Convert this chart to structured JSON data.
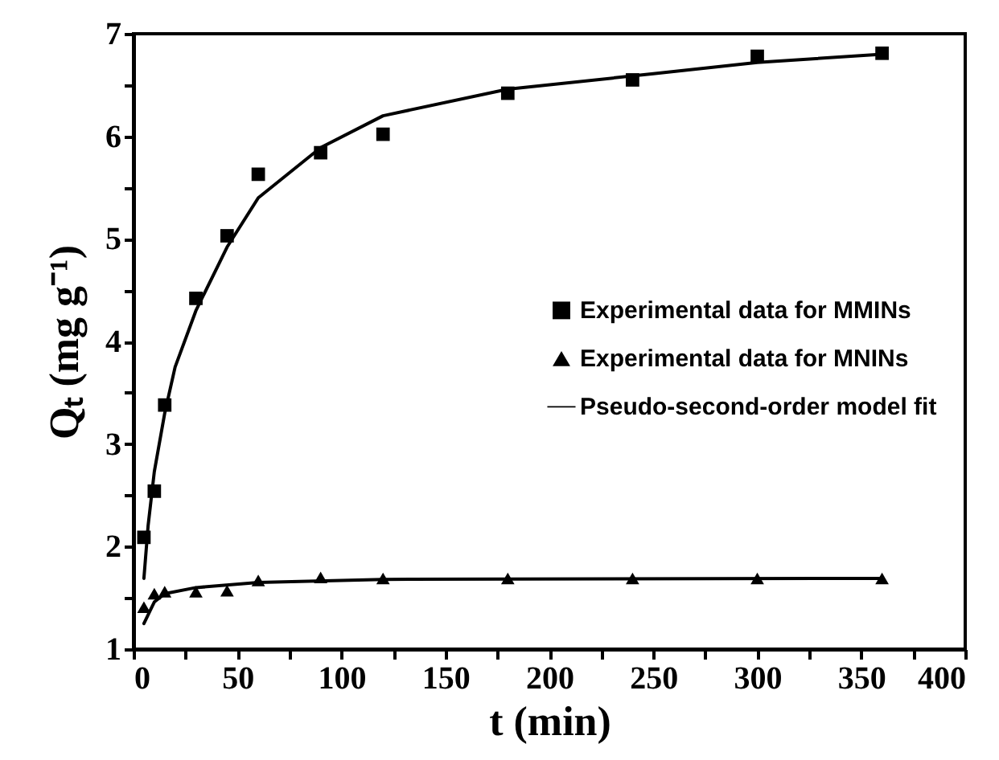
{
  "chart_data": {
    "type": "scatter",
    "xlabel": "t (min)",
    "ylabel": "Qₜ (mg g⁻¹)",
    "xlim": [
      0,
      400
    ],
    "xticks": [
      0,
      {
        "value": 25,
        "label": null
      },
      50,
      {
        "value": 75,
        "label": null
      },
      100,
      {
        "value": 125,
        "label": null
      },
      150,
      {
        "value": 175,
        "label": null
      },
      200,
      {
        "value": 225,
        "label": null
      },
      250,
      {
        "value": 275,
        "label": null
      },
      300,
      {
        "value": 325,
        "label": null
      },
      350,
      {
        "value": 375,
        "label": null
      },
      400
    ],
    "ylim": [
      1,
      7
    ],
    "yticks": [
      1,
      {
        "value": 1.5,
        "label": null
      },
      2,
      {
        "value": 2.5,
        "label": null
      },
      3,
      {
        "value": 3.5,
        "label": null
      },
      4,
      {
        "value": 4.5,
        "label": null
      },
      5,
      {
        "value": 5.5,
        "label": null
      },
      6,
      {
        "value": 6.5,
        "label": null
      },
      7
    ],
    "legend": "right",
    "grid": false,
    "series": [
      {
        "name": "Experimental data for MMINs",
        "type": "scatter",
        "marker": "square",
        "color": "#000000",
        "x": [
          5,
          10,
          15,
          30,
          45,
          60,
          90,
          120,
          180,
          240,
          300,
          360
        ],
        "values": [
          2.09,
          2.54,
          3.38,
          4.42,
          5.03,
          5.63,
          5.84,
          6.02,
          6.42,
          6.55,
          6.78,
          6.81
        ]
      },
      {
        "name": "Experimental data for MNINs",
        "type": "scatter",
        "marker": "triangle",
        "color": "#000000",
        "x": [
          5,
          10,
          15,
          30,
          45,
          60,
          90,
          120,
          180,
          240,
          300,
          360
        ],
        "values": [
          1.41,
          1.54,
          1.56,
          1.56,
          1.57,
          1.67,
          1.7,
          1.69,
          1.69,
          1.69,
          1.69,
          1.69
        ]
      },
      {
        "name": "Pseudo-second-order model fit",
        "type": "line",
        "color": "#000000",
        "x": [
          5,
          7,
          10,
          15,
          20,
          30,
          45,
          60,
          90,
          120,
          180,
          250,
          300,
          360
        ],
        "values": [
          1.69,
          2.2,
          2.73,
          3.3,
          3.75,
          4.3,
          4.92,
          5.4,
          5.89,
          6.2,
          6.46,
          6.61,
          6.72,
          6.8
        ]
      },
      {
        "type": "line",
        "color": "#000000",
        "x": [
          5,
          10,
          15,
          30,
          60,
          120,
          360
        ],
        "values": [
          1.25,
          1.46,
          1.54,
          1.6,
          1.65,
          1.68,
          1.69
        ]
      }
    ]
  }
}
